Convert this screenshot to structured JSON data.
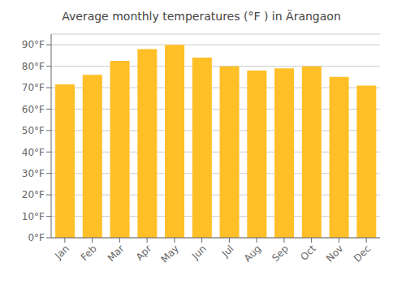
{
  "chart_data": {
    "type": "bar",
    "title": "Average monthly temperatures (°F ) in Ärangaon",
    "categories": [
      "Jan",
      "Feb",
      "Mar",
      "Apr",
      "May",
      "Jun",
      "Jul",
      "Aug",
      "Sep",
      "Oct",
      "Nov",
      "Dec"
    ],
    "values": [
      71.5,
      76.0,
      82.5,
      88.0,
      90.0,
      84.0,
      80.0,
      78.0,
      79.0,
      80.0,
      75.0,
      71.0
    ],
    "color": "#ffbf26",
    "ylim": [
      0,
      95
    ],
    "yticks": [
      {
        "value": 0,
        "label": "0°F"
      },
      {
        "value": 10,
        "label": "10°F"
      },
      {
        "value": 20,
        "label": "20°F"
      },
      {
        "value": 30,
        "label": "30°F"
      },
      {
        "value": 40,
        "label": "40°F"
      },
      {
        "value": 50,
        "label": "50°F"
      },
      {
        "value": 60,
        "label": "60°F"
      },
      {
        "value": 70,
        "label": "70°F"
      },
      {
        "value": 80,
        "label": "80°F"
      },
      {
        "value": 90,
        "label": "90°F"
      }
    ],
    "grid": true
  }
}
